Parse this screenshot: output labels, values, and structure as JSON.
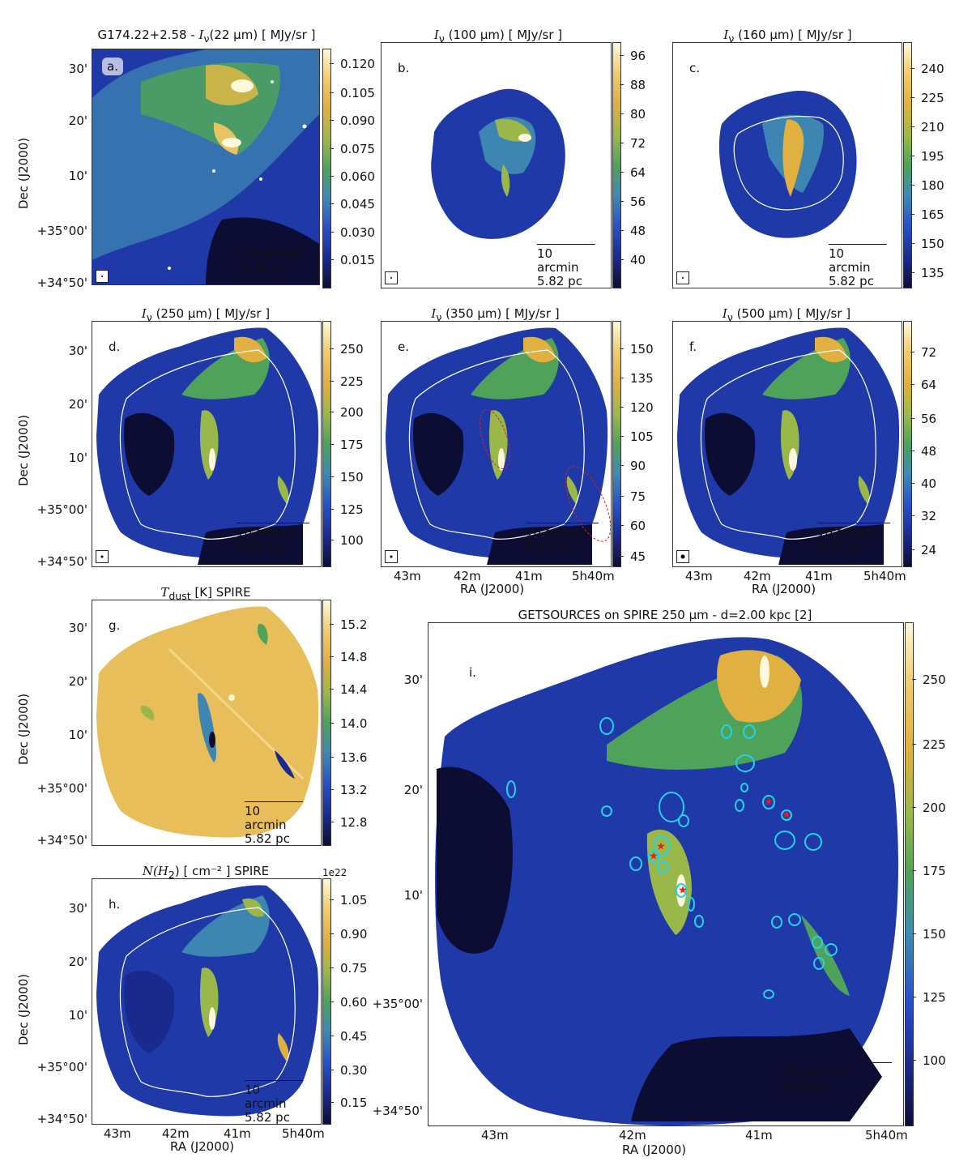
{
  "colors": {
    "background": "#ffffff",
    "colormap": [
      "#0d0d33",
      "#1a2a8c",
      "#2a50c8",
      "#3e8bb2",
      "#4fa25a",
      "#9ab84a",
      "#e0b040",
      "#f2cc70",
      "#fff8dc"
    ],
    "contour": "#ffffff",
    "ellipse_source": "#22d3e6",
    "ellipse_red": "#d62020",
    "star": "#e02020"
  },
  "panels": {
    "a": {
      "title_prefix": "G174.22+2.58 - ",
      "title_sym": "I",
      "title_sub": "ν",
      "title_rest": "(22 μm)   [ MJy/sr ]",
      "letter": "a.",
      "scale_arcmin": "10 arcmin",
      "scale_pc": "5.82 pc",
      "cbar_ticks": [
        "0.120",
        "0.105",
        "0.090",
        "0.075",
        "0.060",
        "0.045",
        "0.030",
        "0.015"
      ]
    },
    "b": {
      "title_sym": "I",
      "title_sub": "ν",
      "title_rest": "(100 μm) [ MJy/sr ]",
      "letter": "b.",
      "scale_arcmin": "10 arcmin",
      "scale_pc": "5.82 pc",
      "cbar_ticks": [
        "96",
        "88",
        "80",
        "72",
        "64",
        "56",
        "48",
        "40"
      ]
    },
    "c": {
      "title_sym": "I",
      "title_sub": "ν",
      "title_rest": "(160 μm) [ MJy/sr ]",
      "letter": "c.",
      "scale_arcmin": "10 arcmin",
      "scale_pc": "5.82 pc",
      "cbar_ticks": [
        "240",
        "225",
        "210",
        "195",
        "180",
        "165",
        "150",
        "135"
      ]
    },
    "d": {
      "title_sym": "I",
      "title_sub": "ν",
      "title_rest": "(250 μm) [ MJy/sr ]",
      "letter": "d.",
      "scale_arcmin": "10 arcmin",
      "scale_pc": "5.82 pc",
      "cbar_ticks": [
        "250",
        "225",
        "200",
        "175",
        "150",
        "125",
        "100"
      ]
    },
    "e": {
      "title_sym": "I",
      "title_sub": "ν",
      "title_rest": "(350 μm) [ MJy/sr ]",
      "letter": "e.",
      "scale_arcmin": "10 arcmin",
      "scale_pc": "5.82 pc",
      "cbar_ticks": [
        "150",
        "135",
        "120",
        "105",
        "90",
        "75",
        "60",
        "45"
      ]
    },
    "f": {
      "title_sym": "I",
      "title_sub": "ν",
      "title_rest": "(500 μm) [ MJy/sr ]",
      "letter": "f.",
      "scale_arcmin": "10 arcmin",
      "scale_pc": "5.82 pc",
      "cbar_ticks": [
        "72",
        "64",
        "56",
        "48",
        "40",
        "32",
        "24"
      ]
    },
    "g": {
      "title_sym": "T",
      "title_sub": "dust",
      "title_rest": " [K] SPIRE",
      "letter": "g.",
      "scale_arcmin": "10 arcmin",
      "scale_pc": "5.82 pc",
      "cbar_ticks": [
        "15.2",
        "14.8",
        "14.4",
        "14.0",
        "13.6",
        "13.2",
        "12.8"
      ]
    },
    "h": {
      "title_sym": "N(H",
      "title_sub": "2",
      "title_rest": ")  [ cm⁻² ] SPIRE",
      "letter": "h.",
      "scale_arcmin": "10 arcmin",
      "scale_pc": "5.82 pc",
      "cbar_exponent": "1e22",
      "cbar_ticks": [
        "1.05",
        "0.90",
        "0.75",
        "0.60",
        "0.45",
        "0.30",
        "0.15"
      ]
    },
    "i": {
      "title": "GETSOURCES on SPIRE 250 μm  -  d=2.00 kpc [2]",
      "letter": "i.",
      "scale_arcmin": "10 arcmin",
      "scale_pc": "5.82 pc",
      "cbar_ticks": [
        "250",
        "225",
        "200",
        "175",
        "150",
        "125",
        "100"
      ]
    }
  },
  "axes": {
    "dec_ticks_small": [
      "30'",
      "20'",
      "10'",
      "+35°00'",
      "+34°50'"
    ],
    "dec_ticks_large": [
      "30'",
      "20'",
      "10'",
      "+35°00'",
      "+34°50'"
    ],
    "ra_ticks": [
      "43m",
      "42m",
      "41m",
      "5h40m"
    ],
    "ra_label": "RA (J2000)",
    "dec_label": "Dec (J2000)"
  }
}
